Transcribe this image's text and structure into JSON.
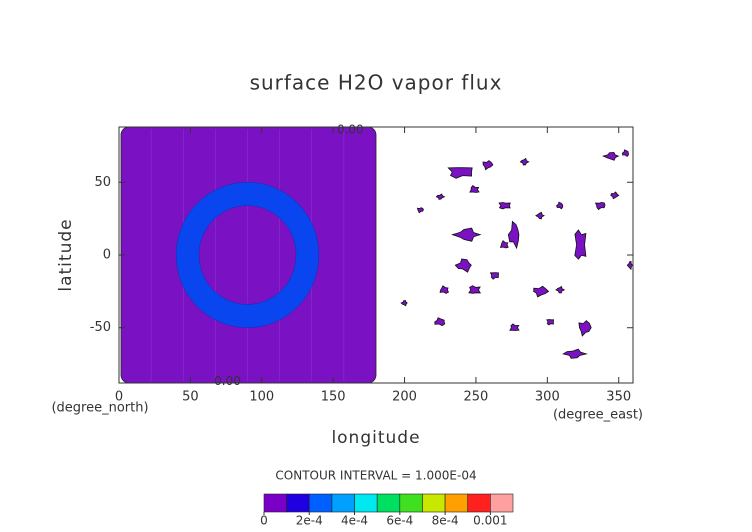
{
  "chart_data": {
    "type": "contour",
    "title": "surface H2O vapor flux",
    "xlabel": "longitude",
    "ylabel": "latitude",
    "xunit": "(degree_east)",
    "yunit": "(degree_north)",
    "xlim": [
      0,
      360
    ],
    "ylim": [
      -88,
      88
    ],
    "xticks": [
      0,
      50,
      100,
      150,
      200,
      250,
      300,
      350
    ],
    "yticks": [
      -50,
      0,
      50
    ],
    "block": {
      "color": "#7a12c4",
      "lon": [
        0,
        180
      ],
      "lat": [
        -88,
        88
      ]
    },
    "ring": {
      "color": "#0a46f0",
      "center": [
        90,
        0
      ],
      "radii": [
        34,
        50
      ]
    },
    "patch_color": "#7a12c4",
    "patches": [
      [
        239,
        57,
        21,
        10
      ],
      [
        258,
        62,
        8,
        7
      ],
      [
        284,
        64,
        6,
        5
      ],
      [
        345,
        68,
        12,
        6
      ],
      [
        355,
        70,
        6,
        5
      ],
      [
        249,
        45,
        8,
        6
      ],
      [
        270,
        34,
        10,
        6
      ],
      [
        211,
        31,
        5,
        4
      ],
      [
        225,
        40,
        6,
        4
      ],
      [
        244,
        14,
        21,
        10
      ],
      [
        277,
        14,
        10,
        20
      ],
      [
        270,
        7,
        7,
        6
      ],
      [
        323,
        7,
        10,
        27
      ],
      [
        337,
        34,
        8,
        6
      ],
      [
        347,
        41,
        6,
        5
      ],
      [
        295,
        27,
        6,
        5
      ],
      [
        242,
        -7,
        14,
        10
      ],
      [
        228,
        -24,
        8,
        6
      ],
      [
        249,
        -24,
        10,
        7
      ],
      [
        263,
        -14,
        7,
        6
      ],
      [
        295,
        -25,
        12,
        8
      ],
      [
        309,
        -24,
        6,
        5
      ],
      [
        200,
        -33,
        5,
        4
      ],
      [
        225,
        -46,
        10,
        6
      ],
      [
        277,
        -50,
        8,
        6
      ],
      [
        302,
        -46,
        6,
        5
      ],
      [
        326,
        -50,
        10,
        12
      ],
      [
        319,
        -68,
        17,
        7
      ],
      [
        358,
        -7,
        4,
        6
      ],
      [
        309,
        34,
        6,
        5
      ]
    ],
    "contour_labels": [
      {
        "text": "0.00",
        "lon": 162,
        "lat": 86
      },
      {
        "text": "0.00",
        "lon": 76,
        "lat": -87
      }
    ],
    "colorbar": {
      "title": "CONTOUR INTERVAL = 1.000E-04",
      "lim": [
        0,
        0.0011
      ],
      "colors": [
        "#7a00c8",
        "#2000e0",
        "#0060ff",
        "#00a0ff",
        "#00e8f0",
        "#00e060",
        "#40e020",
        "#c8e800",
        "#ffa000",
        "#ff2020",
        "#ffa0a0"
      ],
      "ticks": [
        0,
        {
          "value": 0.0002,
          "label": "2e-4"
        },
        {
          "value": 0.0004,
          "label": "4e-4"
        },
        {
          "value": 0.0006,
          "label": "6e-4"
        },
        {
          "value": 0.0008,
          "label": "8e-4"
        },
        0.001
      ]
    }
  }
}
